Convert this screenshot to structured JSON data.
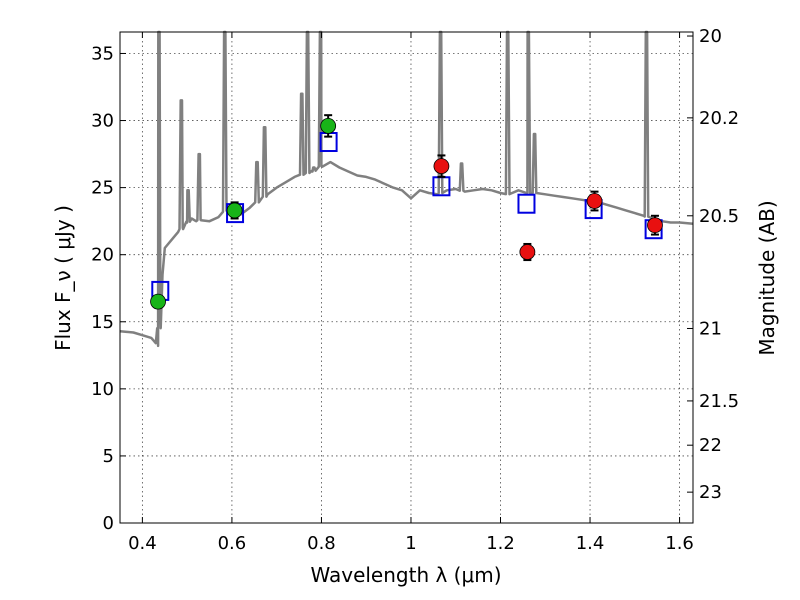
{
  "chart_data": {
    "type": "scatter",
    "xlabel": "Wavelength  λ (μm)",
    "ylabel": "Flux  F_ν  ( μJy )",
    "ylabel_right": "Magnitude (AB)",
    "xlim": [
      0.35,
      1.63
    ],
    "ylim": [
      0,
      36.6
    ],
    "x_ticks": [
      0.4,
      0.6,
      0.8,
      1.0,
      1.2,
      1.4,
      1.6
    ],
    "x_tick_labels": [
      "0.4",
      "0.6",
      "0.8",
      "1",
      "1.2",
      "1.4",
      "1.6"
    ],
    "y_ticks": [
      0,
      5,
      10,
      15,
      20,
      25,
      30,
      35
    ],
    "y_tick_labels": [
      "0",
      "5",
      "10",
      "15",
      "20",
      "25",
      "30",
      "35"
    ],
    "right_ticks": [
      {
        "flux": 36.3,
        "label": "20"
      },
      {
        "flux": 30.2,
        "label": "20.2"
      },
      {
        "flux": 22.9,
        "label": "20.5"
      },
      {
        "flux": 14.5,
        "label": "21"
      },
      {
        "flux": 9.1,
        "label": "21.5"
      },
      {
        "flux": 5.8,
        "label": "22"
      },
      {
        "flux": 2.3,
        "label": "23"
      }
    ],
    "grid": true,
    "colors": {
      "spectrum": "#808080",
      "green_points": "#18b418",
      "red_points": "#e81010",
      "model_boxes": "#0000e0",
      "errorbars": "#000000"
    },
    "series": [
      {
        "kind": "line",
        "x": [
          0.35,
          0.38,
          0.4,
          0.42,
          0.425,
          0.43,
          0.435,
          0.44,
          0.445,
          0.45,
          0.47,
          0.48,
          0.49,
          0.5,
          0.51,
          0.52,
          0.53,
          0.55,
          0.57,
          0.58,
          0.59,
          0.6,
          0.62,
          0.64,
          0.66,
          0.68,
          0.7,
          0.72,
          0.74,
          0.76,
          0.78,
          0.8,
          0.82,
          0.84,
          0.86,
          0.88,
          0.9,
          0.92,
          0.94,
          0.96,
          0.98,
          1.0,
          1.02,
          1.04,
          1.06,
          1.08,
          1.1,
          1.12,
          1.14,
          1.16,
          1.18,
          1.2,
          1.22,
          1.24,
          1.26,
          1.28,
          1.3,
          1.32,
          1.34,
          1.36,
          1.38,
          1.4,
          1.42,
          1.44,
          1.46,
          1.48,
          1.5,
          1.52,
          1.54,
          1.56,
          1.58,
          1.6,
          1.63
        ],
        "y": [
          14.3,
          14.2,
          14.0,
          13.8,
          13.6,
          13.4,
          13.2,
          16.5,
          18.5,
          20.5,
          21.3,
          21.7,
          22.0,
          22.4,
          22.7,
          22.5,
          22.6,
          22.5,
          22.8,
          23.2,
          23.4,
          23.2,
          23.0,
          23.5,
          24.0,
          24.5,
          25.0,
          25.4,
          25.8,
          26.0,
          26.2,
          26.6,
          26.9,
          26.5,
          26.2,
          25.9,
          25.8,
          25.6,
          25.3,
          25.0,
          24.8,
          24.2,
          24.8,
          24.6,
          24.5,
          24.8,
          24.9,
          24.7,
          24.8,
          24.9,
          24.8,
          24.6,
          24.5,
          24.8,
          24.6,
          24.6,
          24.5,
          24.4,
          24.3,
          24.2,
          24.1,
          24.0,
          23.9,
          23.7,
          23.5,
          23.3,
          23.1,
          22.9,
          22.7,
          22.5,
          22.4,
          22.4,
          22.3
        ]
      },
      {
        "kind": "line",
        "name": "emission-lines",
        "spikes": [
          {
            "x": 0.437,
            "peak": 36.6
          },
          {
            "x": 0.487,
            "peak": 31.5
          },
          {
            "x": 0.502,
            "peak": 24.8
          },
          {
            "x": 0.527,
            "peak": 27.5
          },
          {
            "x": 0.584,
            "peak": 36.6
          },
          {
            "x": 0.656,
            "peak": 26.9
          },
          {
            "x": 0.673,
            "peak": 29.5
          },
          {
            "x": 0.756,
            "peak": 32.0
          },
          {
            "x": 0.769,
            "peak": 36.6
          },
          {
            "x": 0.783,
            "peak": 26.5
          },
          {
            "x": 0.798,
            "peak": 36.6
          },
          {
            "x": 1.066,
            "peak": 36.6
          },
          {
            "x": 1.113,
            "peak": 26.8
          },
          {
            "x": 1.216,
            "peak": 36.6
          },
          {
            "x": 1.262,
            "peak": 36.6
          },
          {
            "x": 1.276,
            "peak": 29.0
          },
          {
            "x": 1.526,
            "peak": 36.6
          }
        ]
      },
      {
        "kind": "scatter",
        "marker": "circle",
        "points": [
          {
            "x": 0.435,
            "y": 16.5,
            "err": 0.3
          },
          {
            "x": 0.606,
            "y": 23.3,
            "err": 0.6
          },
          {
            "x": 0.815,
            "y": 29.6,
            "err": 0.8
          }
        ]
      },
      {
        "kind": "scatter",
        "marker": "circle",
        "points": [
          {
            "x": 1.068,
            "y": 26.6,
            "err": 0.8
          },
          {
            "x": 1.26,
            "y": 20.2,
            "err": 0.6
          },
          {
            "x": 1.41,
            "y": 24.0,
            "err": 0.7
          },
          {
            "x": 1.545,
            "y": 22.2,
            "err": 0.7
          }
        ]
      },
      {
        "kind": "scatter",
        "marker": "square",
        "points": [
          {
            "x": 0.44,
            "y": 17.3
          },
          {
            "x": 0.607,
            "y": 23.1
          },
          {
            "x": 0.816,
            "y": 28.4
          },
          {
            "x": 1.068,
            "y": 25.1
          },
          {
            "x": 1.258,
            "y": 23.8
          },
          {
            "x": 1.408,
            "y": 23.4
          },
          {
            "x": 1.542,
            "y": 21.9
          }
        ]
      }
    ]
  }
}
